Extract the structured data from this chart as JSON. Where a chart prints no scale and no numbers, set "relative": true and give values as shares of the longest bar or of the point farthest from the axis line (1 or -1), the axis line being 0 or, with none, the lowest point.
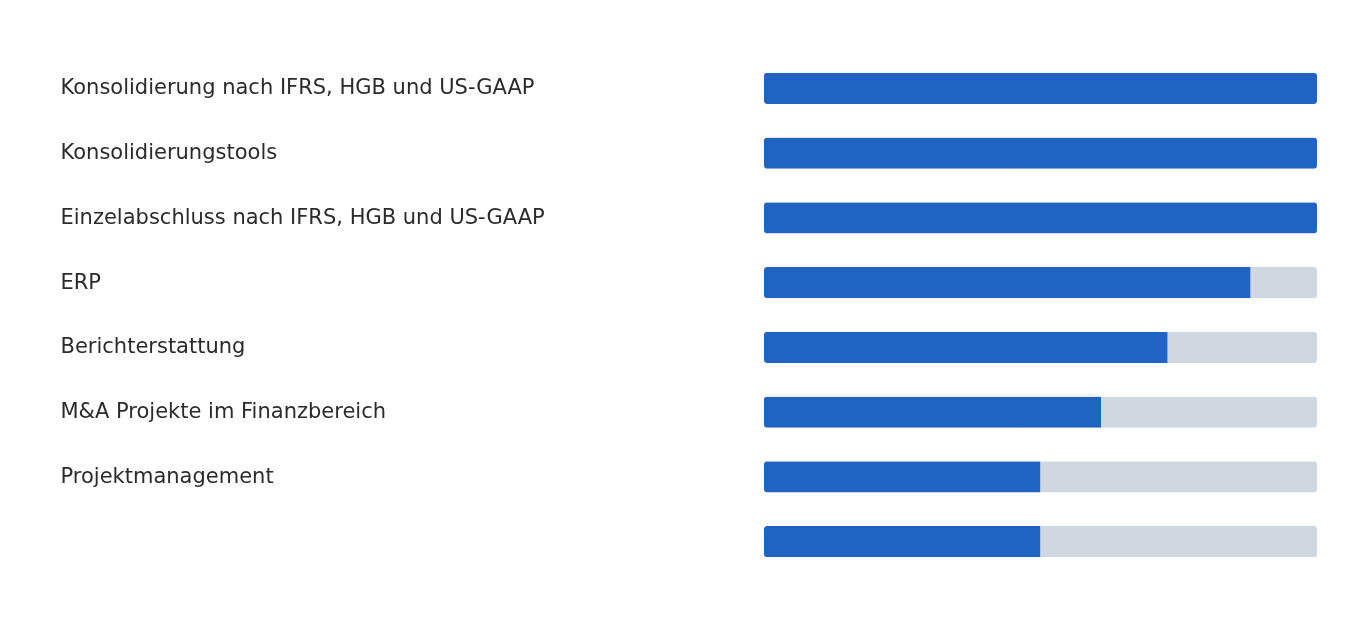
{
  "chart_data": {
    "type": "bar",
    "orientation": "horizontal",
    "stacked": true,
    "relative": true,
    "legend": false,
    "categories": [
      "Konsolidierung nach IFRS, HGB und US-GAAP",
      "Konsolidierungstools",
      "Einzelabschluss nach IFRS, HGB und US-GAAP",
      "ERP",
      "Berichterstattung",
      "M&A Projekte im Finanzbereich",
      "Projektmanagement",
      null
    ],
    "series": [
      {
        "color": "#2064c3",
        "values": [
          1,
          1,
          1,
          0.88,
          0.73,
          0.61,
          0.5,
          0.5
        ]
      },
      {
        "color": "#cfd8e1",
        "values": [
          0,
          0,
          0,
          0.12,
          0.27,
          0.39,
          0.5,
          0.5
        ]
      }
    ]
  }
}
